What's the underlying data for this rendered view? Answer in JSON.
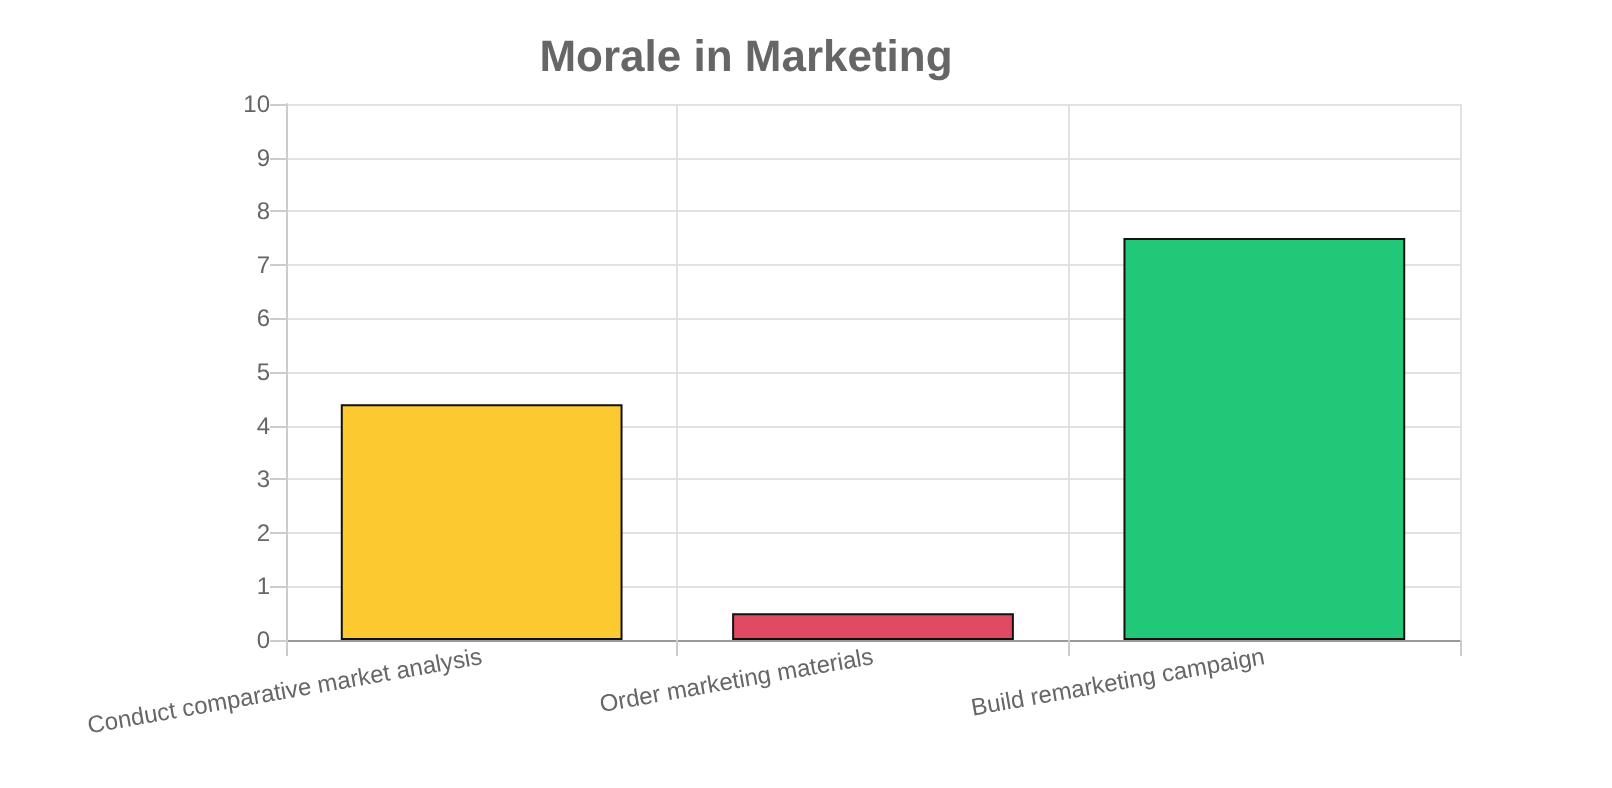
{
  "chart_data": {
    "type": "bar",
    "title": "Morale in Marketing",
    "categories": [
      "Conduct comparative market analysis",
      "Order marketing materials",
      "Build remarketing campaign"
    ],
    "values": [
      4.4,
      0.5,
      7.5
    ],
    "colors": [
      "#fcc930",
      "#e04a62",
      "#20c878"
    ],
    "ylim": [
      0,
      10
    ],
    "yticks": [
      0,
      1,
      2,
      3,
      4,
      5,
      6,
      7,
      8,
      9,
      10
    ],
    "grid": true
  }
}
